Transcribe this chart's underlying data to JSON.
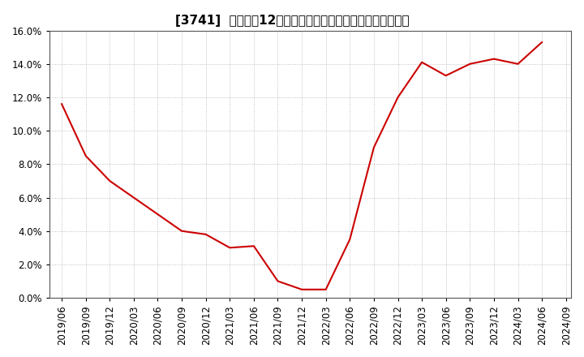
{
  "title": "[3741]  売上高の12か月移動合計の対前年同期増減率の推移",
  "line_color": "#cc0000",
  "background_color": "#ffffff",
  "grid_color": "#aaaaaa",
  "ylim": [
    0.0,
    0.16
  ],
  "yticks": [
    0.0,
    0.02,
    0.04,
    0.06,
    0.08,
    0.1,
    0.12,
    0.14,
    0.16
  ],
  "ytick_labels": [
    "0.0%",
    "2.0%",
    "4.0%",
    "6.0%",
    "8.0%",
    "10.0%",
    "12.0%",
    "14.0%",
    "16.0%"
  ],
  "dates": [
    "2019/06",
    "2019/09",
    "2019/12",
    "2020/03",
    "2020/06",
    "2020/09",
    "2020/12",
    "2021/03",
    "2021/06",
    "2021/09",
    "2021/12",
    "2022/03",
    "2022/06",
    "2022/09",
    "2022/12",
    "2023/03",
    "2023/06",
    "2023/09",
    "2023/12",
    "2024/03",
    "2024/06"
  ],
  "values": [
    0.116,
    0.085,
    0.07,
    0.06,
    0.05,
    0.04,
    0.038,
    0.03,
    0.031,
    0.01,
    0.005,
    0.005,
    0.035,
    0.09,
    0.12,
    0.141,
    0.133,
    0.14,
    0.143,
    0.14,
    0.153
  ],
  "xtick_labels": [
    "2019/06",
    "2019/09",
    "2019/12",
    "2020/03",
    "2020/06",
    "2020/09",
    "2020/12",
    "2021/03",
    "2021/06",
    "2021/09",
    "2021/12",
    "2022/03",
    "2022/06",
    "2022/09",
    "2022/12",
    "2023/03",
    "2023/06",
    "2023/09",
    "2023/12",
    "2024/03",
    "2024/06",
    "2024/09"
  ],
  "title_fontsize": 11,
  "tick_fontsize": 8.5,
  "line_width": 1.5
}
